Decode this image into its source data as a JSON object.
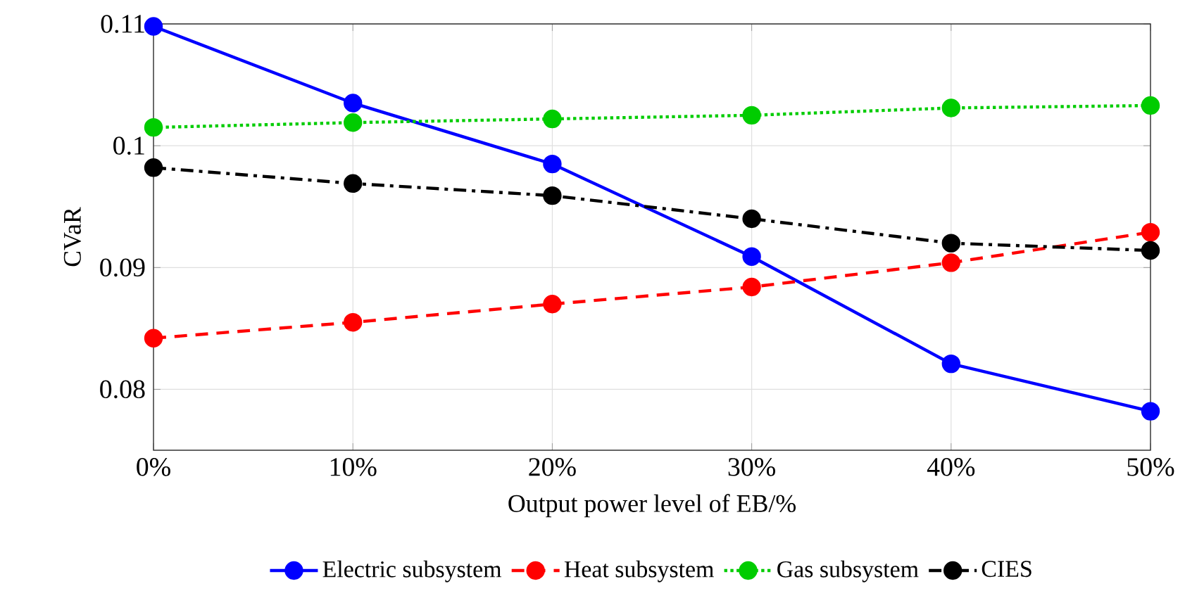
{
  "chart_data": {
    "type": "line",
    "xlabel": "Output power level of EB/%",
    "ylabel": "CVaR",
    "categories": [
      "0%",
      "10%",
      "20%",
      "30%",
      "40%",
      "50%"
    ],
    "series": [
      {
        "name": "Electric subsystem",
        "color": "#0000ff",
        "line_style": "solid",
        "values": [
          0.1098,
          0.1035,
          0.0985,
          0.0909,
          0.0821,
          0.0782
        ]
      },
      {
        "name": "Heat subsystem",
        "color": "#ff0000",
        "line_style": "dashed",
        "values": [
          0.0842,
          0.0855,
          0.087,
          0.0884,
          0.0904,
          0.0929
        ]
      },
      {
        "name": "Gas subsystem",
        "color": "#00cc00",
        "line_style": "dotted",
        "values": [
          0.1015,
          0.1019,
          0.1022,
          0.1025,
          0.1031,
          0.1033
        ]
      },
      {
        "name": "CIES",
        "color": "#000000",
        "line_style": "dashdot",
        "values": [
          0.0982,
          0.0969,
          0.0959,
          0.094,
          0.092,
          0.0914
        ]
      }
    ],
    "ylim": [
      0.075,
      0.11
    ],
    "yticks": [
      0.08,
      0.09,
      {
        "value": 0.1,
        "label": "0.1"
      },
      0.11
    ],
    "grid": true,
    "legend": "bottom",
    "marker": "circle"
  }
}
